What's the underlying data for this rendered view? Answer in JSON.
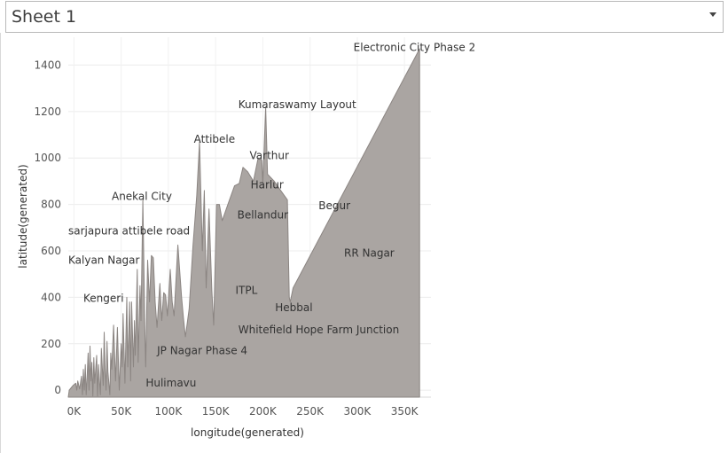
{
  "sheet": {
    "title": "Sheet 1"
  },
  "chart_data": {
    "type": "area",
    "xlabel": "longitude(generated)",
    "ylabel": "latitude(generated)",
    "xlim": [
      -6000,
      378000
    ],
    "ylim": [
      -30,
      1520
    ],
    "x_ticks": [
      {
        "v": 0,
        "label": "0K"
      },
      {
        "v": 50000,
        "label": "50K"
      },
      {
        "v": 100000,
        "label": "100K"
      },
      {
        "v": 150000,
        "label": "150K"
      },
      {
        "v": 200000,
        "label": "200K"
      },
      {
        "v": 250000,
        "label": "250K"
      },
      {
        "v": 300000,
        "label": "300K"
      },
      {
        "v": 350000,
        "label": "350K"
      }
    ],
    "y_ticks": [
      {
        "v": 0,
        "label": "0"
      },
      {
        "v": 200,
        "label": "200"
      },
      {
        "v": 400,
        "label": "400"
      },
      {
        "v": 600,
        "label": "600"
      },
      {
        "v": 800,
        "label": "800"
      },
      {
        "v": 1000,
        "label": "1000"
      },
      {
        "v": 1200,
        "label": "1200"
      },
      {
        "v": 1400,
        "label": "1400"
      }
    ],
    "grid": true,
    "fill_color": "#aaa5a2",
    "line_color": "#8b8582",
    "points": [
      [
        -6000,
        -30
      ],
      [
        -5000,
        0
      ],
      [
        -3000,
        10
      ],
      [
        -1000,
        20
      ],
      [
        2000,
        30
      ],
      [
        3000,
        0
      ],
      [
        4000,
        40
      ],
      [
        6000,
        5
      ],
      [
        8000,
        60
      ],
      [
        9000,
        -20
      ],
      [
        10000,
        90
      ],
      [
        11000,
        0
      ],
      [
        12000,
        110
      ],
      [
        13000,
        -20
      ],
      [
        14000,
        60
      ],
      [
        15000,
        160
      ],
      [
        16000,
        0
      ],
      [
        17000,
        190
      ],
      [
        18000,
        40
      ],
      [
        19000,
        120
      ],
      [
        20000,
        -25
      ],
      [
        21000,
        140
      ],
      [
        22000,
        30
      ],
      [
        24000,
        150
      ],
      [
        25000,
        -25
      ],
      [
        26000,
        110
      ],
      [
        28000,
        -20
      ],
      [
        29000,
        180
      ],
      [
        31000,
        20
      ],
      [
        32000,
        250
      ],
      [
        33000,
        100
      ],
      [
        34000,
        0
      ],
      [
        35000,
        210
      ],
      [
        36000,
        80
      ],
      [
        38000,
        -20
      ],
      [
        39000,
        160
      ],
      [
        40000,
        90
      ],
      [
        42000,
        280
      ],
      [
        44000,
        40
      ],
      [
        46000,
        270
      ],
      [
        48000,
        0
      ],
      [
        50000,
        200
      ],
      [
        51000,
        100
      ],
      [
        52000,
        330
      ],
      [
        54000,
        30
      ],
      [
        56000,
        400
      ],
      [
        57000,
        100
      ],
      [
        59000,
        380
      ],
      [
        60000,
        40
      ],
      [
        61000,
        380
      ],
      [
        63000,
        100
      ],
      [
        64000,
        300
      ],
      [
        65000,
        150
      ],
      [
        67000,
        520
      ],
      [
        68000,
        120
      ],
      [
        70000,
        450
      ],
      [
        71000,
        300
      ],
      [
        73000,
        820
      ],
      [
        75000,
        280
      ],
      [
        76000,
        100
      ],
      [
        78000,
        560
      ],
      [
        80000,
        380
      ],
      [
        82000,
        580
      ],
      [
        84000,
        570
      ],
      [
        86000,
        380
      ],
      [
        88000,
        270
      ],
      [
        91000,
        460
      ],
      [
        93000,
        300
      ],
      [
        95000,
        420
      ],
      [
        97000,
        410
      ],
      [
        99000,
        320
      ],
      [
        102000,
        520
      ],
      [
        104000,
        380
      ],
      [
        106000,
        320
      ],
      [
        110000,
        625
      ],
      [
        114000,
        400
      ],
      [
        116000,
        310
      ],
      [
        118000,
        230
      ],
      [
        122000,
        350
      ],
      [
        126000,
        620
      ],
      [
        130000,
        840
      ],
      [
        133000,
        1070
      ],
      [
        136000,
        600
      ],
      [
        138000,
        860
      ],
      [
        140000,
        440
      ],
      [
        143000,
        780
      ],
      [
        146000,
        430
      ],
      [
        148000,
        280
      ],
      [
        151000,
        800
      ],
      [
        154000,
        800
      ],
      [
        157000,
        730
      ],
      [
        163000,
        800
      ],
      [
        170000,
        880
      ],
      [
        175000,
        890
      ],
      [
        179000,
        960
      ],
      [
        184000,
        940
      ],
      [
        190000,
        900
      ],
      [
        195000,
        1000
      ],
      [
        199000,
        990
      ],
      [
        200000,
        890
      ],
      [
        203000,
        1220
      ],
      [
        205000,
        930
      ],
      [
        212000,
        900
      ],
      [
        219000,
        860
      ],
      [
        226000,
        820
      ],
      [
        228000,
        400
      ],
      [
        229000,
        380
      ],
      [
        232000,
        440
      ],
      [
        366000,
        1470
      ]
    ],
    "annotations": [
      {
        "text": "Electronic City Phase 2",
        "x": 296000,
        "y": 1460
      },
      {
        "text": "Kumaraswamy Layout",
        "x": 174000,
        "y": 1215
      },
      {
        "text": "Attibele",
        "x": 127000,
        "y": 1065
      },
      {
        "text": "Varthur",
        "x": 186000,
        "y": 995
      },
      {
        "text": "Harlur",
        "x": 187000,
        "y": 870
      },
      {
        "text": "Begur",
        "x": 259000,
        "y": 780
      },
      {
        "text": "Bellandur",
        "x": 173000,
        "y": 740
      },
      {
        "text": "Anekal City",
        "x": 40000,
        "y": 820
      },
      {
        "text": "sarjapura attibele road",
        "x": -6000,
        "y": 670
      },
      {
        "text": "Kalyan Nagar",
        "x": -6000,
        "y": 545
      },
      {
        "text": "RR Nagar",
        "x": 286000,
        "y": 575
      },
      {
        "text": "ITPL",
        "x": 171000,
        "y": 415
      },
      {
        "text": "Kengeri",
        "x": 10000,
        "y": 380
      },
      {
        "text": "Hebbal",
        "x": 213000,
        "y": 340
      },
      {
        "text": "Whitefield Hope Farm Junction",
        "x": 174000,
        "y": 245
      },
      {
        "text": "JP Nagar Phase 4",
        "x": 88000,
        "y": 155
      },
      {
        "text": "Hulimavu",
        "x": 76000,
        "y": 15
      }
    ]
  }
}
